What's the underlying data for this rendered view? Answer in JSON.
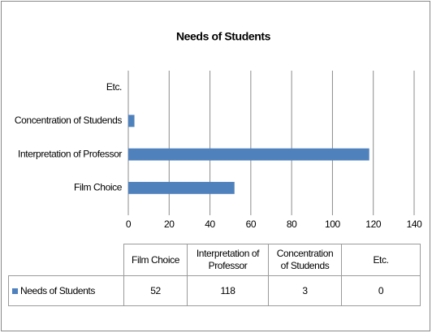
{
  "chart_data": {
    "type": "bar",
    "orientation": "horizontal",
    "title": "Needs of Students",
    "categories": [
      "Film Choice",
      "Interpretation of Professor",
      "Concentration of Studends",
      "Etc."
    ],
    "series": [
      {
        "name": "Needs of Students",
        "color": "#4f81bd",
        "values": [
          52,
          118,
          3,
          0
        ]
      }
    ],
    "xlim": [
      0,
      140
    ],
    "xticks": [
      0,
      20,
      40,
      60,
      80,
      100,
      120,
      140
    ],
    "grid": true
  }
}
